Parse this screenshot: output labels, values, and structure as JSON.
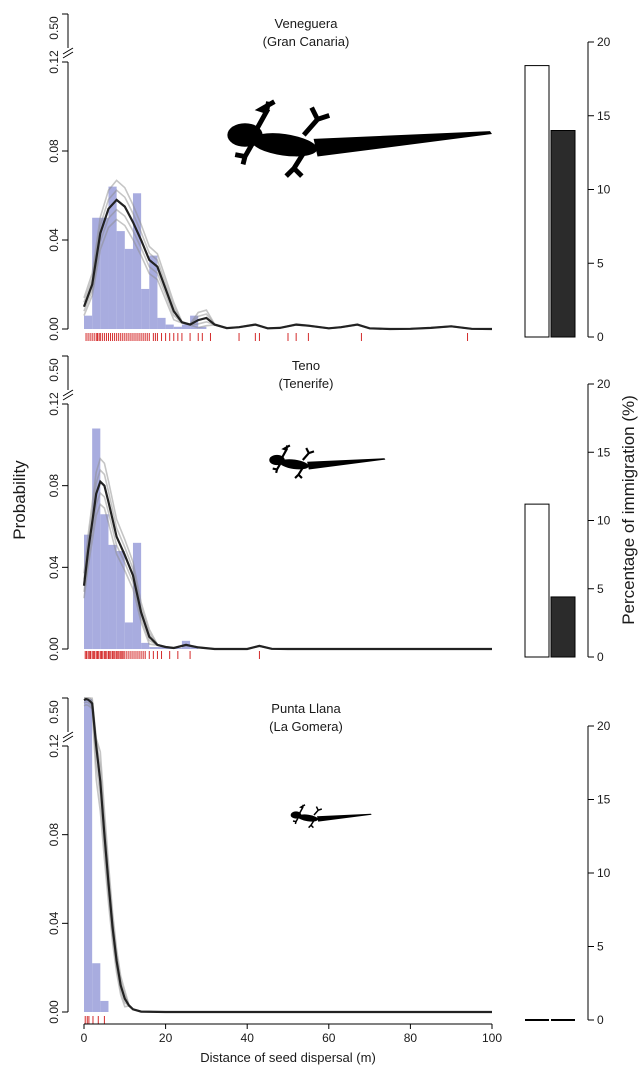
{
  "chart_data": {
    "type": "bar",
    "ylabel": "Probability",
    "xlabel": "Distance of seed dispersal (m)",
    "y2label": "Percentage of immigration (%)",
    "xlim": [
      0,
      100
    ],
    "x_ticks": [
      0,
      20,
      40,
      60,
      80,
      100
    ],
    "y_ticks": [
      "0.00",
      "0.04",
      "0.08",
      "0.12",
      "0.50"
    ],
    "y_break": "between 0.12 and 0.50",
    "y2lim": [
      0,
      20
    ],
    "y2_ticks": [
      0,
      5,
      10,
      15,
      20
    ],
    "colors": {
      "histogram": "#9ea3dc",
      "density": "#222222",
      "density_bootstrap": "#8c8c8c",
      "rug": "#d42b2b",
      "bar_white": "#ffffff",
      "bar_black": "#2b2b2b"
    },
    "panels": [
      {
        "site": "Veneguera",
        "island": "(Gran Canaria)",
        "histogram": {
          "bin_width": 2,
          "bins": [
            0,
            2,
            4,
            6,
            8,
            10,
            12,
            14,
            16,
            18,
            20,
            22,
            24,
            26,
            28,
            30,
            32
          ],
          "values": [
            0.006,
            0.05,
            0.05,
            0.064,
            0.044,
            0.036,
            0.061,
            0.018,
            0.033,
            0.005,
            0.002,
            0.001,
            0.002,
            0.006,
            0.001,
            0,
            0
          ]
        },
        "density": {
          "x": [
            0,
            2,
            4,
            6,
            8,
            10,
            12,
            14,
            16,
            18,
            20,
            22,
            24,
            26,
            28,
            30,
            32,
            35,
            38,
            42,
            45,
            48,
            52,
            55,
            60,
            63,
            67,
            70,
            75,
            80,
            85,
            90,
            95,
            100
          ],
          "y": [
            0.01,
            0.02,
            0.043,
            0.054,
            0.058,
            0.055,
            0.048,
            0.04,
            0.031,
            0.028,
            0.018,
            0.008,
            0.003,
            0.002,
            0.004,
            0.005,
            0.002,
            0.0004,
            0.0008,
            0.002,
            0.0003,
            0.0005,
            0.002,
            0.0015,
            0.0003,
            0.0008,
            0.002,
            0.0003,
            0,
            0.0001,
            0.0005,
            0.0012,
            0.0001,
            0
          ]
        },
        "rug": [
          0.5,
          1,
          1.5,
          2,
          2.5,
          3,
          3.3,
          3.7,
          4,
          4.5,
          5,
          5.5,
          6,
          6.5,
          7,
          7.5,
          8,
          8.5,
          9,
          9.5,
          10,
          10.5,
          11,
          11.5,
          12,
          12.5,
          13,
          13.5,
          14,
          14.5,
          15,
          15.5,
          16,
          17,
          17.5,
          18,
          19,
          20,
          21,
          22,
          23,
          24,
          26,
          28,
          29,
          31,
          38,
          42,
          43,
          50,
          52,
          55,
          68,
          94
        ],
        "immigration": [
          18.4,
          14.0
        ]
      },
      {
        "site": "Teno",
        "island": "(Tenerife)",
        "histogram": {
          "bin_width": 2,
          "bins": [
            0,
            2,
            4,
            6,
            8,
            10,
            12,
            14,
            16,
            18,
            20,
            22,
            24,
            26
          ],
          "values": [
            0.056,
            0.108,
            0.066,
            0.051,
            0.048,
            0.013,
            0.052,
            0.003,
            0.001,
            0.001,
            0.001,
            0.0005,
            0.004,
            0.001
          ]
        },
        "density": {
          "x": [
            0,
            1,
            2,
            3,
            4,
            5,
            6,
            8,
            10,
            12,
            14,
            16,
            18,
            20,
            22,
            25,
            28,
            32,
            40,
            43,
            46,
            50,
            60,
            70,
            80,
            90,
            100
          ],
          "y": [
            0.031,
            0.048,
            0.062,
            0.076,
            0.082,
            0.08,
            0.072,
            0.055,
            0.046,
            0.036,
            0.018,
            0.006,
            0.002,
            0.001,
            0.0005,
            0.002,
            0.0008,
            0,
            0,
            0.0015,
            0.0001,
            0,
            0,
            0,
            0,
            0,
            0
          ]
        },
        "rug": [
          0.3,
          0.6,
          1,
          1.3,
          1.6,
          2,
          2.3,
          2.6,
          3,
          3.3,
          3.6,
          4,
          4.3,
          4.6,
          5,
          5.3,
          5.6,
          6,
          6.3,
          6.6,
          7,
          7.3,
          7.6,
          8,
          8.3,
          8.6,
          9,
          9.3,
          9.6,
          10,
          10.5,
          11,
          11.5,
          12,
          12.5,
          13,
          13.5,
          14,
          14.5,
          15,
          16,
          17,
          18,
          19,
          21,
          23,
          26,
          43
        ],
        "immigration": [
          11.2,
          4.4
        ]
      },
      {
        "site": "Punta Llana",
        "island": "(La Gomera)",
        "histogram": {
          "bin_width": 2,
          "bins": [
            0,
            2,
            4,
            6
          ],
          "values": [
            0.49,
            0.022,
            0.005,
            0
          ]
        },
        "density": {
          "x": [
            0,
            0.5,
            1,
            1.5,
            2,
            3,
            4,
            5,
            6,
            7,
            8,
            9,
            10,
            11,
            12,
            14,
            20,
            40,
            60,
            80,
            100
          ],
          "y": [
            0.48,
            0.49,
            0.485,
            0.47,
            0.45,
            0.12,
            0.104,
            0.08,
            0.058,
            0.038,
            0.023,
            0.012,
            0.006,
            0.003,
            0.0012,
            0.0002,
            0,
            0,
            0,
            0,
            0
          ]
        },
        "rug": [
          0.3,
          0.8,
          1.2,
          2.2,
          3.5,
          5
        ],
        "immigration": [
          0,
          0
        ]
      }
    ]
  }
}
